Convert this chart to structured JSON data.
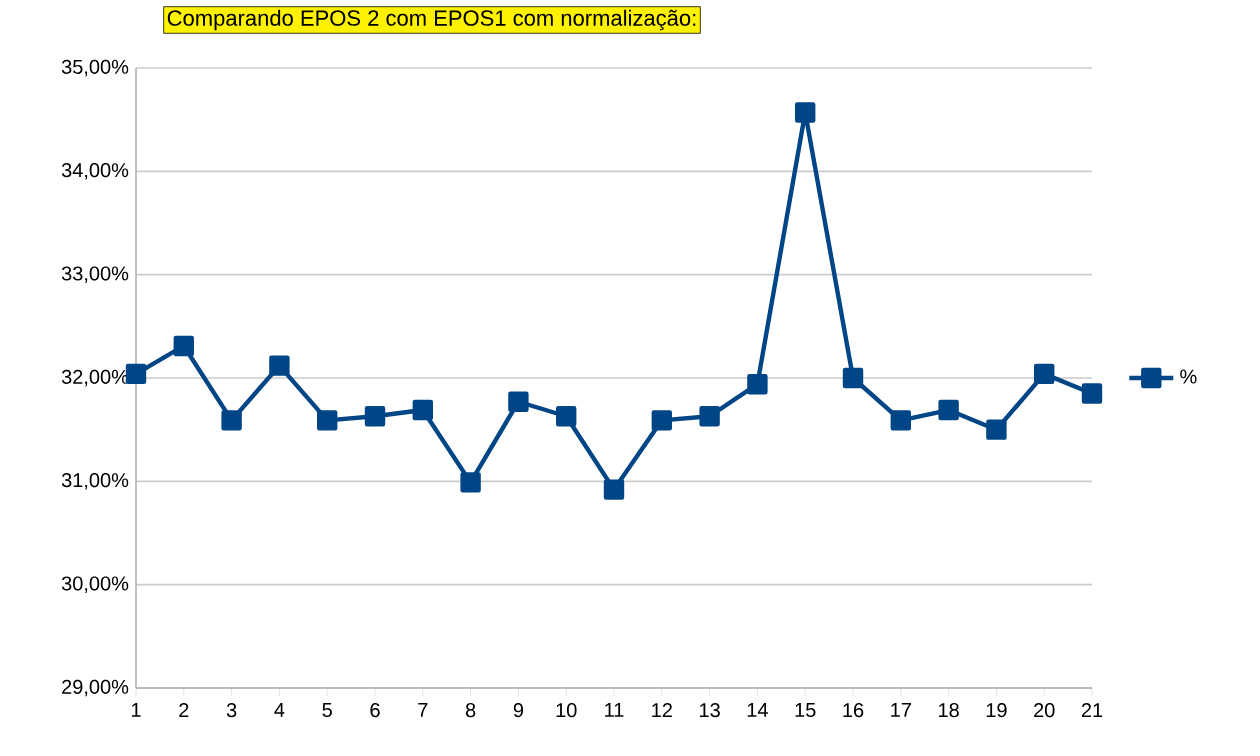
{
  "chart_data": {
    "type": "line",
    "title": "Comparando EPOS 2 com EPOS1 com normalização:",
    "categories": [
      "1",
      "2",
      "3",
      "4",
      "5",
      "6",
      "7",
      "8",
      "9",
      "10",
      "11",
      "12",
      "13",
      "14",
      "15",
      "16",
      "17",
      "18",
      "19",
      "20",
      "21"
    ],
    "series": [
      {
        "name": "%",
        "color": "#004586",
        "values": [
          32.04,
          32.31,
          31.59,
          32.12,
          31.59,
          31.63,
          31.69,
          30.99,
          31.77,
          31.63,
          30.92,
          31.59,
          31.63,
          31.94,
          34.57,
          32.0,
          31.59,
          31.69,
          31.5,
          32.04,
          31.85
        ]
      }
    ],
    "ylim": [
      29,
      35
    ],
    "yticks": [
      {
        "value": 29,
        "label": "29,00%"
      },
      {
        "value": 30,
        "label": "30,00%"
      },
      {
        "value": 31,
        "label": "31,00%"
      },
      {
        "value": 32,
        "label": "32,00%"
      },
      {
        "value": 33,
        "label": "33,00%"
      },
      {
        "value": 34,
        "label": "34,00%"
      },
      {
        "value": 35,
        "label": "35,00%"
      }
    ],
    "grid": "y",
    "legend": "right",
    "marker": "square",
    "line_style": "solid"
  }
}
